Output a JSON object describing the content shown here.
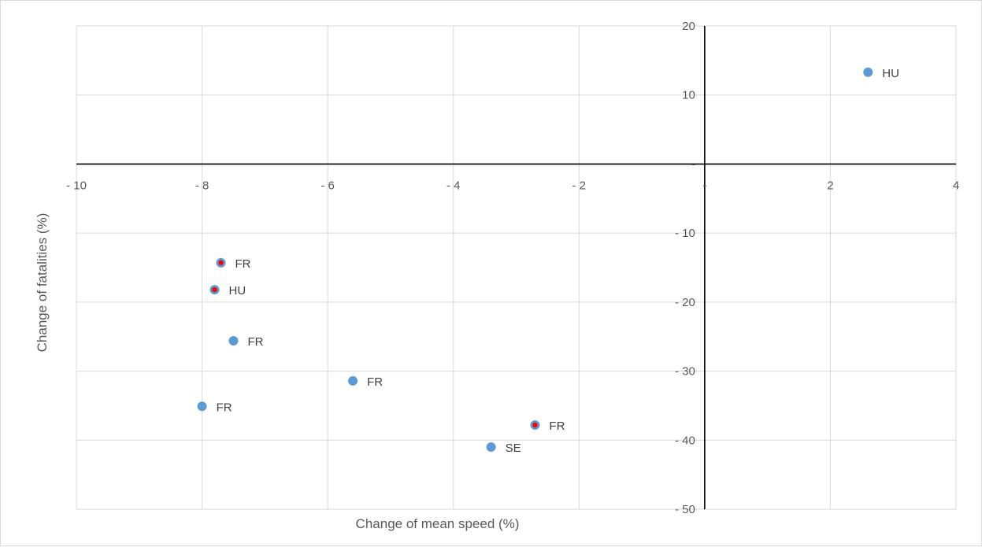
{
  "chart_data": {
    "type": "scatter",
    "title": "",
    "xlabel": "Change of mean speed (%)",
    "ylabel": "Change of fatalities (%)",
    "xlim": [
      -10,
      4
    ],
    "ylim": [
      -50,
      20
    ],
    "x_ticks": [
      -10,
      -8,
      -6,
      -4,
      -2,
      0,
      2,
      4
    ],
    "x_tick_labels": [
      "- 10",
      "- 8",
      "- 6",
      "- 4",
      "- 2",
      "-",
      "2",
      "4"
    ],
    "y_ticks": [
      20,
      10,
      0,
      -10,
      -20,
      -30,
      -40,
      -50
    ],
    "y_tick_labels": [
      "20",
      "10",
      "-",
      "- 10",
      "- 20",
      "- 30",
      "- 40",
      "- 50"
    ],
    "grid": true,
    "colors": {
      "marker": "#5b9bd5",
      "highlight": "#ff0000",
      "axis": "#000000",
      "grid": "#d9d9d9"
    },
    "points": [
      {
        "x": 2.6,
        "y": 13.3,
        "label": "HU",
        "highlight": false
      },
      {
        "x": -7.7,
        "y": -14.3,
        "label": "FR",
        "highlight": true
      },
      {
        "x": -7.8,
        "y": -18.2,
        "label": "HU",
        "highlight": true
      },
      {
        "x": -7.5,
        "y": -25.6,
        "label": "FR",
        "highlight": false
      },
      {
        "x": -5.6,
        "y": -31.4,
        "label": "FR",
        "highlight": false
      },
      {
        "x": -8.0,
        "y": -35.1,
        "label": "FR",
        "highlight": false
      },
      {
        "x": -2.7,
        "y": -37.8,
        "label": "FR",
        "highlight": true
      },
      {
        "x": -3.4,
        "y": -41.0,
        "label": "SE",
        "highlight": false
      }
    ]
  }
}
